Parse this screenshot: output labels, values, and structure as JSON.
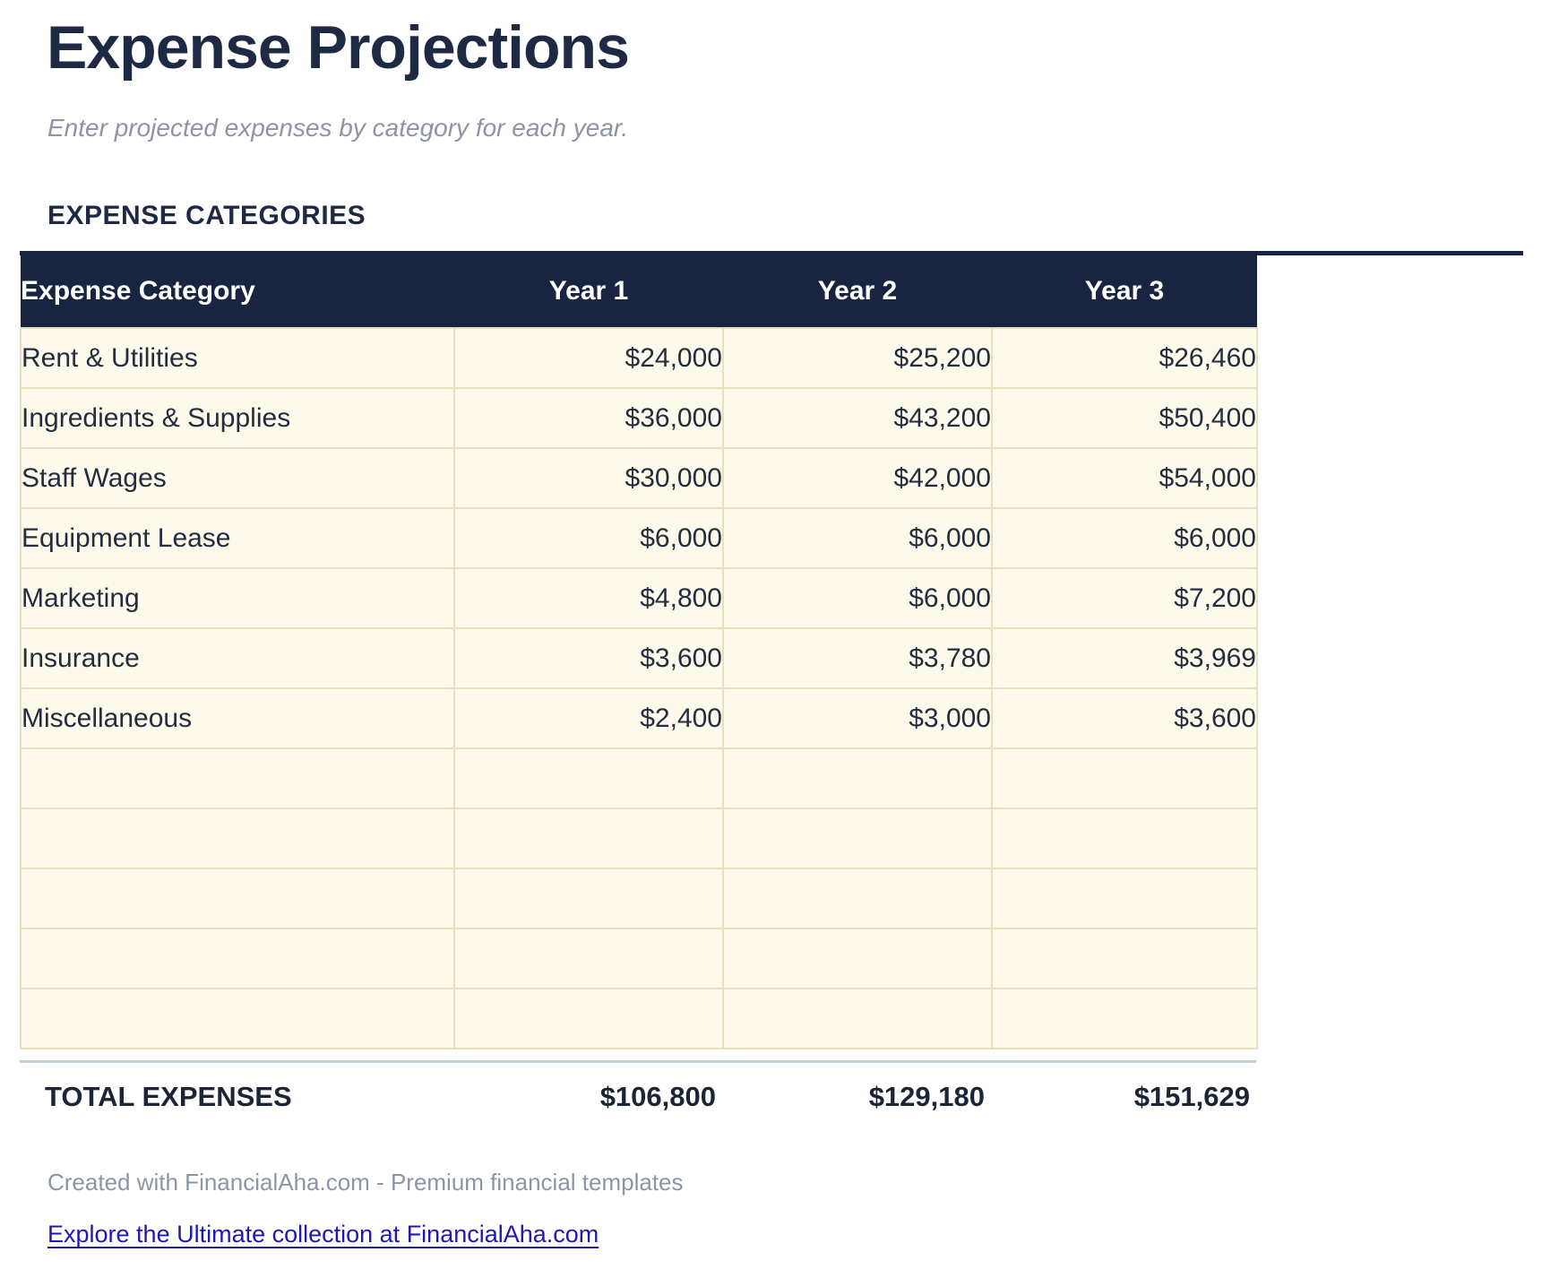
{
  "page": {
    "title": "Expense Projections",
    "subtitle": "Enter projected expenses by category for each year.",
    "section_heading": "EXPENSE CATEGORIES",
    "footer_note": "Created with FinancialAha.com - Premium financial templates",
    "footer_link": "Explore the Ultimate collection at FinancialAha.com"
  },
  "table": {
    "columns": [
      "Expense Category",
      "Year 1",
      "Year 2",
      "Year 3"
    ],
    "rows": [
      {
        "category": "Rent & Utilities",
        "values": [
          "$24,000",
          "$25,200",
          "$26,460"
        ]
      },
      {
        "category": "Ingredients & Supplies",
        "values": [
          "$36,000",
          "$43,200",
          "$50,400"
        ]
      },
      {
        "category": "Staff Wages",
        "values": [
          "$30,000",
          "$42,000",
          "$54,000"
        ]
      },
      {
        "category": "Equipment Lease",
        "values": [
          "$6,000",
          "$6,000",
          "$6,000"
        ]
      },
      {
        "category": "Marketing",
        "values": [
          "$4,800",
          "$6,000",
          "$7,200"
        ]
      },
      {
        "category": "Insurance",
        "values": [
          "$3,600",
          "$3,780",
          "$3,969"
        ]
      },
      {
        "category": "Miscellaneous",
        "values": [
          "$2,400",
          "$3,000",
          "$3,600"
        ]
      }
    ],
    "empty_row_count": 5,
    "total": {
      "label": "TOTAL EXPENSES",
      "values": [
        "$106,800",
        "$129,180",
        "$151,629"
      ]
    }
  },
  "colors": {
    "header_navy": "#192440",
    "cell_cream": "#fdfaec",
    "cell_border_tan": "#e6dfc0",
    "divider_gray": "#c9cfd9",
    "title_navy": "#1e2a44",
    "muted_gray": "#8c95a5",
    "link_blue": "#1e18b4"
  }
}
